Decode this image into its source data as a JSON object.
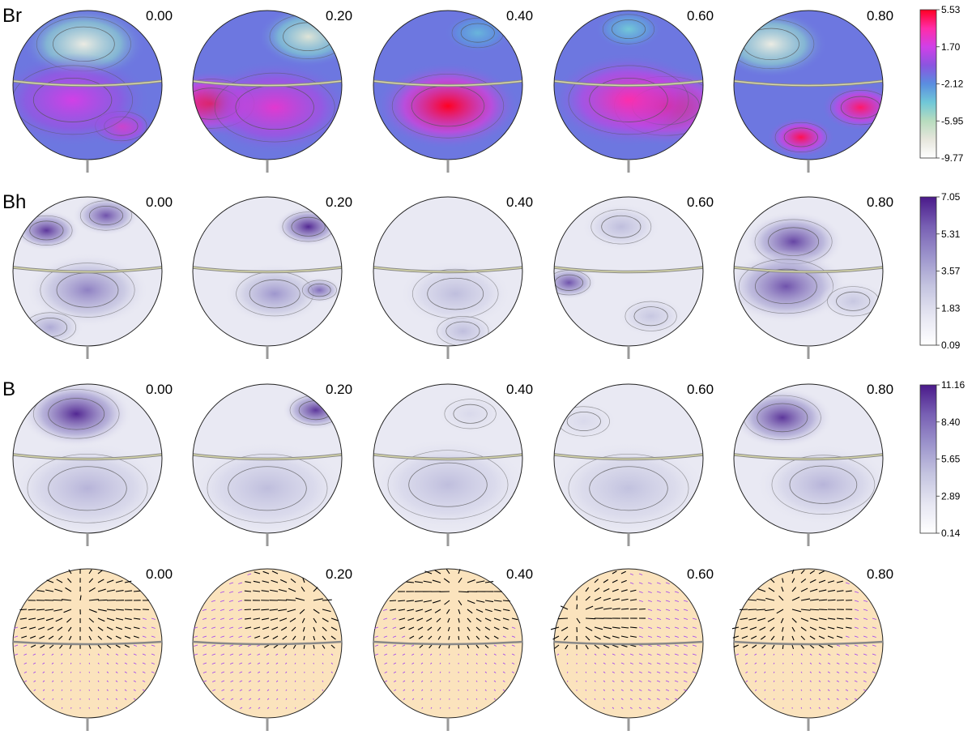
{
  "rows": [
    {
      "label": "Br",
      "kind": "scalar",
      "colormap": "br",
      "colorbar": {
        "ticks": [
          "5.53",
          "1.70",
          "-2.12",
          "-5.95",
          "-9.77"
        ]
      }
    },
    {
      "label": "Bh",
      "kind": "scalar",
      "colormap": "purple",
      "colorbar": {
        "ticks": [
          "7.05",
          "5.31",
          "3.57",
          "1.83",
          "0.09"
        ]
      }
    },
    {
      "label": "B",
      "kind": "scalar",
      "colormap": "purple",
      "colorbar": {
        "ticks": [
          "11.16",
          "8.40",
          "5.65",
          "2.89",
          "0.14"
        ]
      }
    },
    {
      "label": "",
      "kind": "vector",
      "colormap": "vector",
      "colorbar": null
    }
  ],
  "phases": [
    "0.00",
    "0.20",
    "0.40",
    "0.60",
    "0.80"
  ],
  "colors": {
    "br": [
      "#ffffff",
      "#e6e6dc",
      "#b8dcbe",
      "#70c8d8",
      "#5a8ee0",
      "#8a55e0",
      "#d040e8",
      "#ff2ca8",
      "#ff0022"
    ],
    "purple": [
      "#ffffff",
      "#e6e6f2",
      "#c4c4e0",
      "#9c94cc",
      "#7860b4",
      "#4a1a8a"
    ],
    "vector_surface": "#fbe3bd",
    "vector_positive": "#000000",
    "vector_negative": "#a040f0",
    "equator": "#d8d8a8",
    "outline": "#222222"
  }
}
